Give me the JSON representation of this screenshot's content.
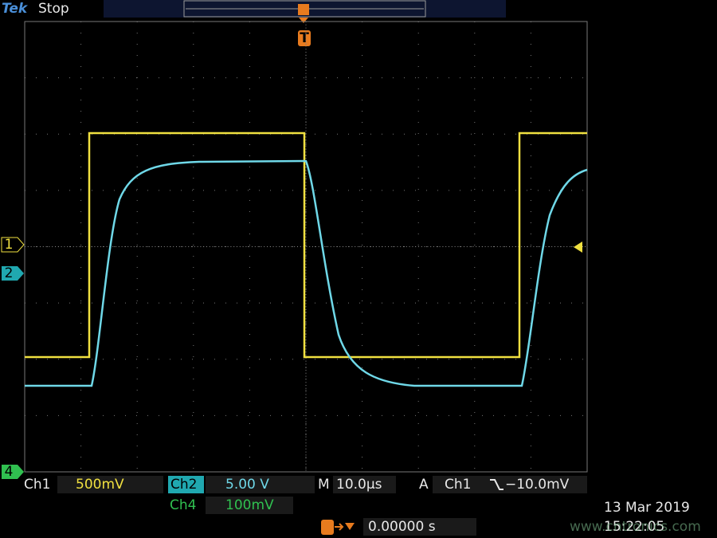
{
  "header": {
    "brand": "Tek",
    "status": "Stop",
    "trigger_marker": "T"
  },
  "channel_markers": {
    "ch1": "1",
    "ch2": "2",
    "ch4": "4"
  },
  "readout": {
    "ch1_label": "Ch1",
    "ch1_scale": "500mV",
    "ch2_label": "Ch2",
    "ch2_scale": "5.00 V",
    "timebase_label": "M",
    "timebase": "10.0µs",
    "trigger_label": "A",
    "trigger_source": "Ch1",
    "trigger_level": "−10.0mV",
    "ch4_label": "Ch4",
    "ch4_scale": "100mV",
    "trigger_position": "0.00000 s",
    "date": "13 Mar 2019",
    "time": "15:22:05"
  },
  "watermark": "www.cntronics.com"
}
